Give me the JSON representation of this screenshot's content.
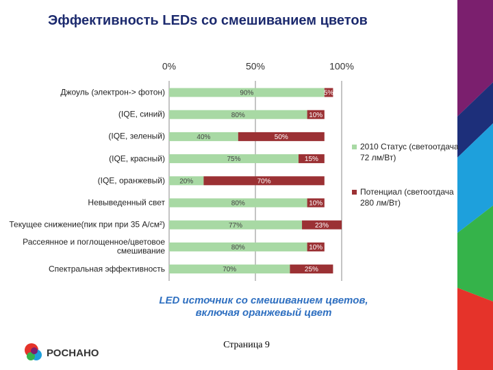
{
  "chart_data": {
    "type": "bar",
    "orientation": "horizontal",
    "stacked": true,
    "title": "Эффективность LEDs со смешиванием цветов",
    "categories": [
      "Джоуль (электрон-> фотон)",
      "(IQE, синий)",
      "(IQE, зеленый)",
      "(IQE, красный)",
      "(IQE, оранжевый)",
      "Невыведенный свет",
      "Текущее снижение(пик при при 35 А/см²)",
      "Рассеянное и поглощенное/цветовое смешивание",
      "Спектральная эффективность"
    ],
    "series": [
      {
        "name": "2010 Статус (светоотдача 72 лм/Вт)",
        "color": "#a8d9a4",
        "label_color": "#444444",
        "values": [
          90,
          80,
          40,
          75,
          20,
          80,
          77,
          80,
          70
        ],
        "value_labels": [
          "90%",
          "80%",
          "40%",
          "75%",
          "20%",
          "80%",
          "77%",
          "80%",
          "70%"
        ]
      },
      {
        "name": "Потенциал (светоотдача 280 лм/Вт)",
        "color": "#9b3134",
        "label_color": "#ffffff",
        "values": [
          5,
          10,
          50,
          15,
          70,
          10,
          23,
          10,
          25
        ],
        "value_labels": [
          "5%",
          "10%",
          "50%",
          "15%",
          "70%",
          "10%",
          "23%",
          "10%",
          "25%"
        ]
      }
    ],
    "xlim": [
      0,
      100
    ],
    "xticks": [
      {
        "value": 0,
        "label": "0%"
      },
      {
        "value": 50,
        "label": "50%"
      },
      {
        "value": 100,
        "label": "100%"
      }
    ],
    "grid": true,
    "caption": "LED источник со смешиванием цветов, включая оранжевый цвет"
  },
  "footer": {
    "page": "Страница 9",
    "logo": "РОСНАНО"
  }
}
